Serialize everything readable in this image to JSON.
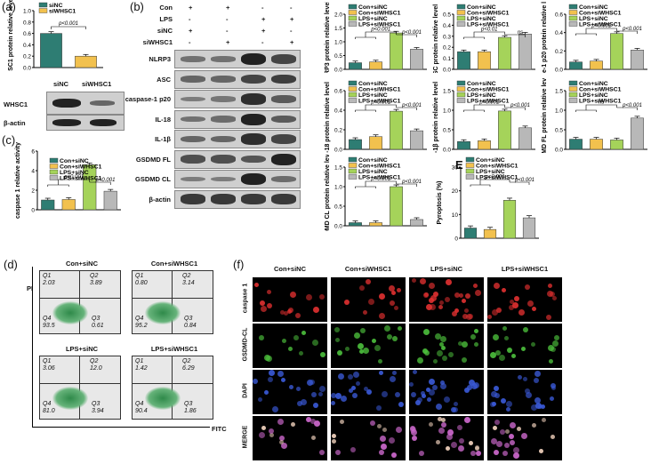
{
  "colors": {
    "siNC": "#2e7d73",
    "siWHSC1": "#f2c14e",
    "con_siNC": "#2e7d73",
    "con_siWHSC1": "#f2c14e",
    "lps_siNC": "#a5d35a",
    "lps_siWHSC1": "#b8b8b8"
  },
  "panel_a": {
    "letter": "(a)",
    "legend": [
      "siNC",
      "siWHSC1"
    ],
    "ylabel": "WHSC1 protein relative level",
    "pval": "p<0.001",
    "lanes": [
      "siNC",
      "siWHSC1"
    ],
    "rows": [
      "WHSC1",
      "β-actin"
    ]
  },
  "panel_b": {
    "letter": "(b)",
    "cond_rows": [
      {
        "name": "Con",
        "marks": [
          "+",
          "+",
          "-",
          "-"
        ]
      },
      {
        "name": "LPS",
        "marks": [
          "-",
          "-",
          "+",
          "+"
        ]
      },
      {
        "name": "siNC",
        "marks": [
          "+",
          "-",
          "+",
          "-"
        ]
      },
      {
        "name": "siWHSC1",
        "marks": [
          "-",
          "+",
          "-",
          "+"
        ]
      }
    ],
    "blots": [
      "NLRP3",
      "ASC",
      "caspase-1 p20",
      "IL-18",
      "IL-1β",
      "GSDMD FL",
      "GSDMD CL",
      "β-actin"
    ]
  },
  "legend4": [
    "Con+siNC",
    "Con+siWHSC1",
    "LPS+siNC",
    "LPS+siWHSC1"
  ],
  "panel_c": {
    "letter": "(c)"
  },
  "panel_d": {
    "letter": "(d)",
    "xlabel": "FITC",
    "ylabel": "PI",
    "titles": [
      "Con+siNC",
      "Con+siWHSC1",
      "LPS+siNC",
      "LPS+siWHSC1"
    ],
    "quads": [
      {
        "q1": "2.03",
        "q2": "3.89",
        "q3": "0.61",
        "q4": "93.5"
      },
      {
        "q1": "0.80",
        "q2": "3.14",
        "q3": "0.84",
        "q4": "95.2"
      },
      {
        "q1": "3.06",
        "q2": "12.0",
        "q3": "3.94",
        "q4": "81.0"
      },
      {
        "q1": "1.42",
        "q2": "6.29",
        "q3": "1.86",
        "q4": "90.4"
      }
    ],
    "qnames": [
      "Q1",
      "Q2",
      "Q3",
      "Q4"
    ]
  },
  "panel_e": {
    "letter": "E"
  },
  "panel_f": {
    "letter": "(f)",
    "cols": [
      "Con+siNC",
      "Con+siWHSC1",
      "LPS+siNC",
      "LPS+siWHSC1"
    ],
    "rows": [
      "caspase 1",
      "GSDMD-CL",
      "DAPI",
      "MERGE"
    ]
  },
  "chart_data": [
    {
      "id": "a",
      "type": "bar",
      "categories": [
        "siNC",
        "siWHSC1"
      ],
      "values": [
        0.6,
        0.2
      ],
      "ylim": [
        0,
        1.0
      ],
      "yticks": [
        "0.0",
        "0.2",
        "0.4",
        "0.6",
        "0.8",
        "1.0"
      ],
      "ylabel": "WHSC1 protein relative level",
      "annotations": [
        "p<0.001"
      ]
    },
    {
      "id": "nlrp3",
      "type": "bar",
      "categories": [
        "Con+siNC",
        "Con+siWHSC1",
        "LPS+siNC",
        "LPS+siWHSC1"
      ],
      "values": [
        0.24,
        0.27,
        1.32,
        0.73
      ],
      "ylim": [
        0,
        2.0
      ],
      "yticks": [
        "0.0",
        "0.5",
        "1.0",
        "1.5",
        "2.0"
      ],
      "ylabel": "NLRP3 protein relative level",
      "annotations": [
        "p<0.001",
        "p<0.001"
      ]
    },
    {
      "id": "asc",
      "type": "bar",
      "categories": [
        "Con+siNC",
        "Con+siWHSC1",
        "LPS+siNC",
        "LPS+siWHSC1"
      ],
      "values": [
        0.16,
        0.16,
        0.29,
        0.32
      ],
      "ylim": [
        0,
        0.5
      ],
      "yticks": [
        "0.0",
        "0.1",
        "0.2",
        "0.3",
        "0.4",
        "0.5"
      ],
      "ylabel": "ASC protein relative level",
      "annotations": [
        "p<0.01",
        "ns"
      ]
    },
    {
      "id": "casp1p20",
      "type": "bar",
      "categories": [
        "Con+siNC",
        "Con+siWHSC1",
        "LPS+siNC",
        "LPS+siWHSC1"
      ],
      "values": [
        0.08,
        0.09,
        0.39,
        0.21
      ],
      "ylim": [
        0,
        0.6
      ],
      "yticks": [
        "0.0",
        "0.2",
        "0.4",
        "0.6"
      ],
      "ylabel": "caspase-1 p20 protein relative level",
      "annotations": [
        "p<0.001",
        "p<0.001"
      ]
    },
    {
      "id": "il18",
      "type": "bar",
      "categories": [
        "Con+siNC",
        "Con+siWHSC1",
        "LPS+siNC",
        "LPS+siWHSC1"
      ],
      "values": [
        0.1,
        0.13,
        0.39,
        0.19
      ],
      "ylim": [
        0,
        0.6
      ],
      "yticks": [
        "0.0",
        "0.2",
        "0.4",
        "0.6"
      ],
      "ylabel": "IL-18 protein relative level",
      "annotations": [
        "p<0.001",
        "p<0.001"
      ]
    },
    {
      "id": "il1b",
      "type": "bar",
      "categories": [
        "Con+siNC",
        "Con+siWHSC1",
        "LPS+siNC",
        "LPS+siWHSC1"
      ],
      "values": [
        0.2,
        0.22,
        0.98,
        0.55
      ],
      "ylim": [
        0,
        1.5
      ],
      "yticks": [
        "0.0",
        "0.5",
        "1.0",
        "1.5"
      ],
      "ylabel": "IL-1β protein relative level",
      "annotations": [
        "p<0.001",
        "p<0.001"
      ]
    },
    {
      "id": "gsdmdfl",
      "type": "bar",
      "categories": [
        "Con+siNC",
        "Con+siWHSC1",
        "LPS+siNC",
        "LPS+siWHSC1"
      ],
      "values": [
        0.26,
        0.26,
        0.24,
        0.8
      ],
      "ylim": [
        0,
        1.5
      ],
      "yticks": [
        "0.0",
        "0.5",
        "1.0",
        "1.5"
      ],
      "ylabel": "GSDMD FL protein relative level",
      "annotations": [
        "ns",
        "p<0.001"
      ]
    },
    {
      "id": "gsdmdcl",
      "type": "bar",
      "categories": [
        "Con+siNC",
        "Con+siWHSC1",
        "LPS+siNC",
        "LPS+siWHSC1"
      ],
      "values": [
        0.08,
        0.08,
        1.0,
        0.16
      ],
      "ylim": [
        0,
        1.5
      ],
      "yticks": [
        "0.0",
        "0.5",
        "1.0",
        "1.5"
      ],
      "ylabel": "GSDMD CL protein relative level",
      "annotations": [
        "p<0.001",
        "p<0.001"
      ]
    },
    {
      "id": "c",
      "type": "bar",
      "categories": [
        "Con+siNC",
        "Con+siWHSC1",
        "LPS+siNC",
        "LPS+siWHSC1"
      ],
      "values": [
        1.0,
        1.05,
        4.6,
        1.9
      ],
      "ylim": [
        0,
        6
      ],
      "yticks": [
        "0",
        "2",
        "4",
        "6"
      ],
      "ylabel": "caspase 1 relative activity",
      "annotations": [
        "p<0.001",
        "p<0.001"
      ]
    },
    {
      "id": "e",
      "type": "bar",
      "categories": [
        "Con+siNC",
        "Con+siWHSC1",
        "LPS+siNC",
        "LPS+siWHSC1"
      ],
      "values": [
        4.3,
        3.7,
        16.0,
        8.6
      ],
      "ylim": [
        0,
        30
      ],
      "yticks": [
        "0",
        "10",
        "20",
        "30"
      ],
      "ylabel": "Pyroptosis (%)",
      "annotations": [
        "p<0.001",
        "p<0.001"
      ]
    }
  ]
}
